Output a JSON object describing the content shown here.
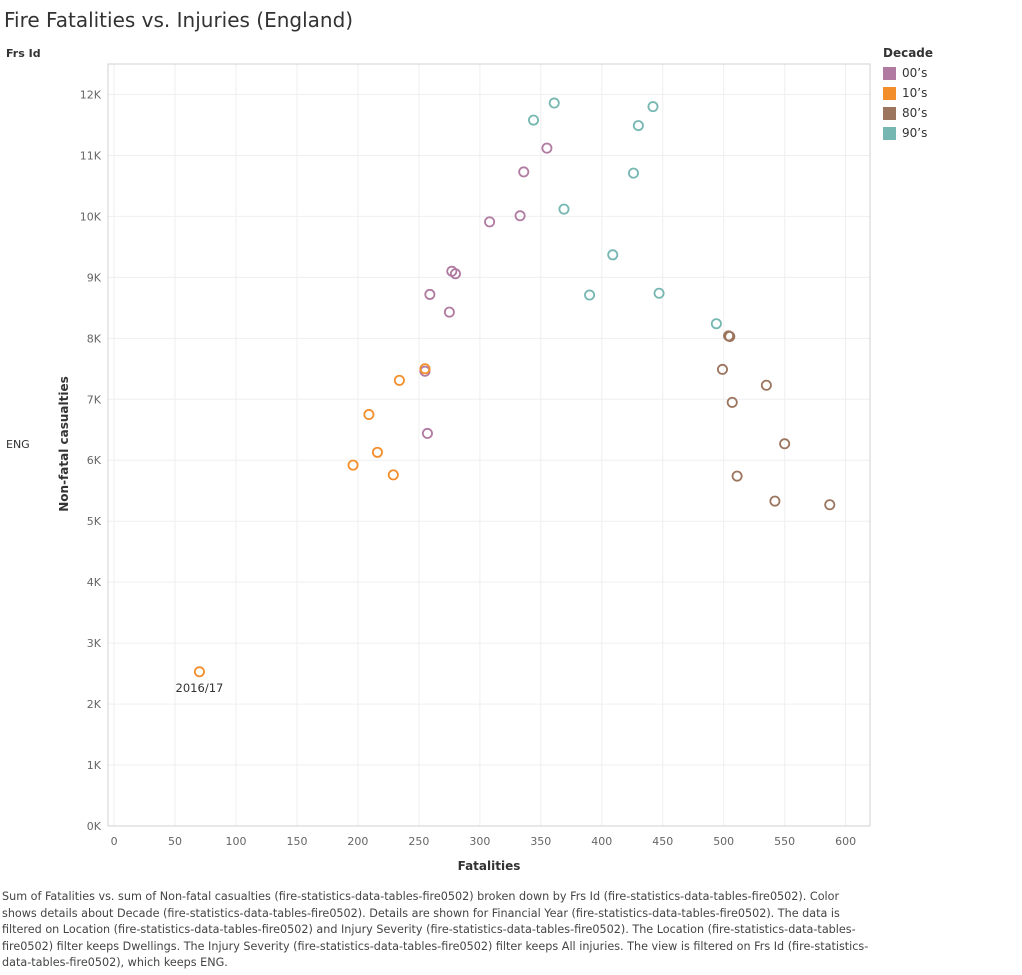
{
  "title": "Fire Fatalities vs. Injuries (England)",
  "row_header": "Frs Id",
  "row_value": "ENG",
  "legend": {
    "title": "Decade",
    "items": [
      {
        "label": "00’s",
        "color": "#b07aa1"
      },
      {
        "label": "10’s",
        "color": "#f28e2b"
      },
      {
        "label": "80’s",
        "color": "#9c755f"
      },
      {
        "label": "90’s",
        "color": "#76b7b2"
      }
    ]
  },
  "chart_data": {
    "type": "scatter",
    "xlabel": "Fatalities",
    "ylabel": "Non-fatal casualties",
    "xlim": [
      -5,
      620
    ],
    "ylim": [
      0,
      12500
    ],
    "xticks": [
      0,
      50,
      100,
      150,
      200,
      250,
      300,
      350,
      400,
      450,
      500,
      550,
      600
    ],
    "yticks": [
      {
        "value": 0,
        "label": "0K"
      },
      {
        "value": 1000,
        "label": "1K"
      },
      {
        "value": 2000,
        "label": "2K"
      },
      {
        "value": 3000,
        "label": "3K"
      },
      {
        "value": 4000,
        "label": "4K"
      },
      {
        "value": 5000,
        "label": "5K"
      },
      {
        "value": 6000,
        "label": "6K"
      },
      {
        "value": 7000,
        "label": "7K"
      },
      {
        "value": 8000,
        "label": "8K"
      },
      {
        "value": 9000,
        "label": "9K"
      },
      {
        "value": 10000,
        "label": "10K"
      },
      {
        "value": 11000,
        "label": "11K"
      },
      {
        "value": 12000,
        "label": "12K"
      }
    ],
    "grid": true,
    "series": [
      {
        "name": "00’s",
        "color": "#b07aa1",
        "points": [
          {
            "x": 355,
            "y": 11120
          },
          {
            "x": 336,
            "y": 10730
          },
          {
            "x": 333,
            "y": 10010
          },
          {
            "x": 308,
            "y": 9910
          },
          {
            "x": 277,
            "y": 9100
          },
          {
            "x": 280,
            "y": 9060
          },
          {
            "x": 259,
            "y": 8720
          },
          {
            "x": 275,
            "y": 8430
          },
          {
            "x": 255,
            "y": 7460
          },
          {
            "x": 257,
            "y": 6440
          }
        ]
      },
      {
        "name": "10’s",
        "color": "#f28e2b",
        "points": [
          {
            "x": 255,
            "y": 7500
          },
          {
            "x": 234,
            "y": 7310
          },
          {
            "x": 209,
            "y": 6750
          },
          {
            "x": 216,
            "y": 6130
          },
          {
            "x": 196,
            "y": 5920
          },
          {
            "x": 229,
            "y": 5760
          },
          {
            "x": 70,
            "y": 2530,
            "label": "2016/17"
          }
        ]
      },
      {
        "name": "80’s",
        "color": "#9c755f",
        "points": [
          {
            "x": 504,
            "y": 8040
          },
          {
            "x": 505,
            "y": 8030
          },
          {
            "x": 499,
            "y": 7490
          },
          {
            "x": 535,
            "y": 7230
          },
          {
            "x": 507,
            "y": 6950
          },
          {
            "x": 550,
            "y": 6270
          },
          {
            "x": 511,
            "y": 5740
          },
          {
            "x": 542,
            "y": 5330
          },
          {
            "x": 587,
            "y": 5270
          }
        ]
      },
      {
        "name": "90’s",
        "color": "#76b7b2",
        "points": [
          {
            "x": 361,
            "y": 11860
          },
          {
            "x": 442,
            "y": 11800
          },
          {
            "x": 344,
            "y": 11580
          },
          {
            "x": 430,
            "y": 11490
          },
          {
            "x": 426,
            "y": 10710
          },
          {
            "x": 369,
            "y": 10120
          },
          {
            "x": 409,
            "y": 9370
          },
          {
            "x": 447,
            "y": 8740
          },
          {
            "x": 390,
            "y": 8710
          },
          {
            "x": 494,
            "y": 8240
          }
        ]
      }
    ]
  },
  "caption": "Sum of Fatalities vs. sum of Non-fatal casualties (fire-statistics-data-tables-fire0502) broken down by Frs Id (fire-statistics-data-tables-fire0502).  Color shows details about Decade (fire-statistics-data-tables-fire0502).  Details are shown for Financial Year (fire-statistics-data-tables-fire0502). The data is filtered on Location (fire-statistics-data-tables-fire0502) and Injury Severity (fire-statistics-data-tables-fire0502). The Location (fire-statistics-data-tables-fire0502) filter keeps Dwellings. The Injury Severity (fire-statistics-data-tables-fire0502) filter keeps All injuries. The view is filtered on Frs Id (fire-statistics-data-tables-fire0502), which keeps ENG."
}
